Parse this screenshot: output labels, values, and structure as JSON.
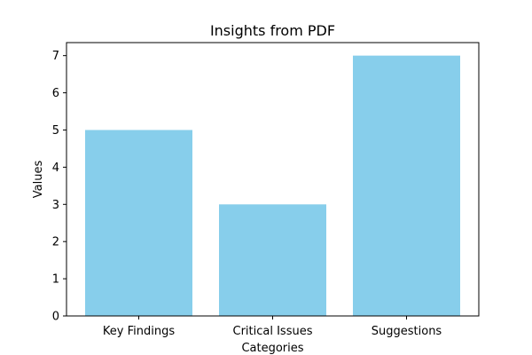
{
  "chart_data": {
    "type": "bar",
    "title": "Insights from PDF",
    "xlabel": "Categories",
    "ylabel": "Values",
    "categories": [
      "Key Findings",
      "Critical Issues",
      "Suggestions"
    ],
    "values": [
      5,
      3,
      7
    ],
    "ylim": [
      0,
      7.35
    ],
    "yticks": [
      "0",
      "1",
      "2",
      "3",
      "4",
      "5",
      "6",
      "7"
    ],
    "grid": false,
    "bar_color": "#87CEEB"
  }
}
